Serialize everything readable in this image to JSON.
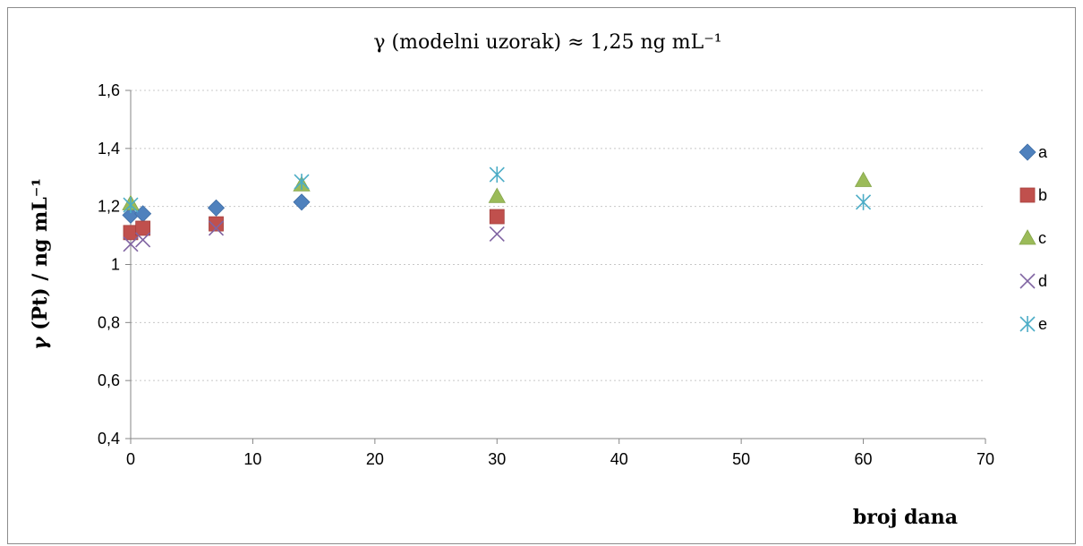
{
  "chart_data": {
    "type": "scatter",
    "title": "γ (modelni uzorak) ≈ 1,25 ng mL⁻¹",
    "xlabel": "broj dana",
    "ylabel_italic": "γ",
    "ylabel_rest": " (Pt) / ng mL⁻¹",
    "xlim": [
      0,
      70
    ],
    "ylim": [
      0.4,
      1.6
    ],
    "xticks": [
      0,
      10,
      20,
      30,
      40,
      50,
      60,
      70
    ],
    "yticks": [
      0.4,
      0.6,
      0.8,
      1.0,
      1.2,
      1.4,
      1.6
    ],
    "xtick_labels": [
      "0",
      "10",
      "20",
      "30",
      "40",
      "50",
      "60",
      "70"
    ],
    "ytick_labels": [
      "0,4",
      "0,6",
      "0,8",
      "1",
      "1,2",
      "1,4",
      "1,6"
    ],
    "grid": "horizontal dotted",
    "legend_position": "right",
    "series": [
      {
        "name": "a",
        "marker": "diamond",
        "color": "#4F81BD",
        "points": [
          [
            0,
            1.17
          ],
          [
            1,
            1.175
          ],
          [
            7,
            1.195
          ],
          [
            14,
            1.215
          ]
        ]
      },
      {
        "name": "b",
        "marker": "square",
        "color": "#C0504D",
        "points": [
          [
            0,
            1.11
          ],
          [
            1,
            1.125
          ],
          [
            7,
            1.14
          ],
          [
            30,
            1.165
          ]
        ]
      },
      {
        "name": "c",
        "marker": "triangle",
        "color": "#9BBB59",
        "points": [
          [
            0,
            1.21
          ],
          [
            14,
            1.275
          ],
          [
            30,
            1.235
          ],
          [
            60,
            1.29
          ]
        ]
      },
      {
        "name": "d",
        "marker": "x",
        "color": "#8064A2",
        "points": [
          [
            0,
            1.07
          ],
          [
            1,
            1.085
          ],
          [
            7,
            1.125
          ],
          [
            30,
            1.105
          ]
        ]
      },
      {
        "name": "e",
        "marker": "star",
        "color": "#4BACC6",
        "points": [
          [
            0,
            1.205
          ],
          [
            14,
            1.285
          ],
          [
            30,
            1.31
          ],
          [
            60,
            1.215
          ]
        ]
      }
    ]
  }
}
